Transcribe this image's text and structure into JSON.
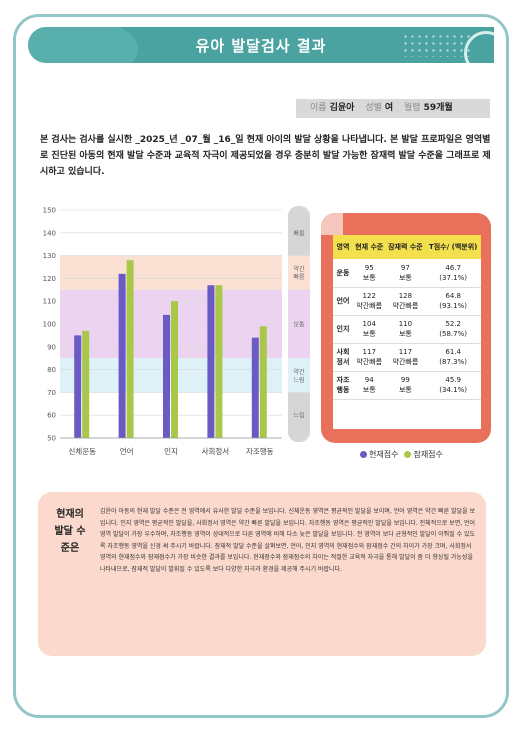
{
  "header": {
    "title": "유아 발달검사 결과"
  },
  "info": {
    "name_label": "이름",
    "name": "김윤아",
    "gender_label": "성별",
    "gender": "여",
    "age_label": "월령",
    "age": "59개월"
  },
  "intro": "본 검사는 검사를 실시한 _2025_년 _07_월 _16_일 현재 아이의 발달 상황을 나타냅니다. 본 발달 프로파일은 영역별로 진단된 아동의 현재 발달 수준과 교육적 자극이 제공되었을 경우 충분히 발달 가능한 잠재력 발달 수준을 그래프로 제시하고 있습니다.",
  "colors": {
    "current": "#6a5bc4",
    "potential": "#a9c84a",
    "band_fast": "#fbe0d4",
    "band_normal": "#ecd3f0",
    "band_slow": "#ddf1f7",
    "header": "#4aa3a0",
    "card": "#e9705a",
    "table_head": "#f4e04d"
  },
  "chart_data": {
    "type": "bar",
    "categories": [
      "신체운동",
      "언어",
      "인지",
      "사회정서",
      "자조행동"
    ],
    "series": [
      {
        "name": "현재점수",
        "values": [
          95,
          122,
          104,
          117,
          94
        ]
      },
      {
        "name": "잠재점수",
        "values": [
          97,
          128,
          110,
          117,
          99
        ]
      }
    ],
    "ylim": [
      50,
      150
    ],
    "yticks": [
      50,
      60,
      70,
      80,
      90,
      100,
      110,
      120,
      130,
      140,
      150
    ],
    "bands": [
      {
        "label": "빠름",
        "from": 130,
        "to": 150
      },
      {
        "label": "약간 빠름",
        "from": 115,
        "to": 130
      },
      {
        "label": "보통",
        "from": 85,
        "to": 115
      },
      {
        "label": "약간 느림",
        "from": 70,
        "to": 85
      },
      {
        "label": "느림",
        "from": 50,
        "to": 70
      }
    ],
    "legend": "bottom-right"
  },
  "table": {
    "headers": [
      "영역",
      "현재 수준",
      "잠재력 수준",
      "T점수/ (백분위)"
    ],
    "rows": [
      {
        "area": "운동",
        "current_score": "95",
        "current_level": "보통",
        "potential_score": "97",
        "potential_level": "보통",
        "t": "46.7",
        "pct": "(37.1%)"
      },
      {
        "area": "언어",
        "current_score": "122",
        "current_level": "약간빠름",
        "potential_score": "128",
        "potential_level": "약간빠름",
        "t": "64.8",
        "pct": "(93.1%)"
      },
      {
        "area": "인지",
        "current_score": "104",
        "current_level": "보통",
        "potential_score": "110",
        "potential_level": "보통",
        "t": "52.2",
        "pct": "(58.7%)"
      },
      {
        "area": "사회 정서",
        "current_score": "117",
        "current_level": "약간빠름",
        "potential_score": "117",
        "potential_level": "약간빠름",
        "t": "61.4",
        "pct": "(87.3%)"
      },
      {
        "area": "자조 행동",
        "current_score": "94",
        "current_level": "보통",
        "potential_score": "99",
        "potential_level": "보통",
        "t": "45.9",
        "pct": "(34.1%)"
      }
    ]
  },
  "legend": {
    "current": "현재점수",
    "potential": "잠재점수"
  },
  "description": {
    "title": "현재의 발달 수준은",
    "text": "김윤아 아동의 현재 발달 수준은 전 영역에서 유사한 발달 수준을 보입니다. 신체운동 영역은 평균적인 발달을 보이며, 언어 영역은 약간 빠른 발달을 보입니다. 인지 영역은 평균적인 발달을, 사회정서 영역은 약간 빠른 발달을 보입니다. 자조행동 영역은 평균적인 발달을 보입니다. 전체적으로 보면, 언어 영역 발달이 가장 우수하며, 자조행동 영역이 상대적으로 다른 영역에 비해 다소 늦은 발달을 보입니다. 전 영역이 보다 균형적인 발달이 이뤄질 수 있도록 자조행동 영역을 신경 써 주시기 바랍니다. 잠재적 발달 수준을 살펴보면, 언어, 인지 영역의 현재점수와 잠재점수 간의 차이가 가장 크며, 사회정서 영역의 현재점수와 잠재점수가 가장 비슷한 결과를 보입니다. 현재점수와 잠재점수의 차이는 적절한 교육적 자극을 통해 발달이 좀 더 향상될 가능성을 나타내므로, 잠재적 발달이 발휘될 수 있도록 보다 다양한 자극과 환경을 제공해 주시기 바랍니다."
  }
}
